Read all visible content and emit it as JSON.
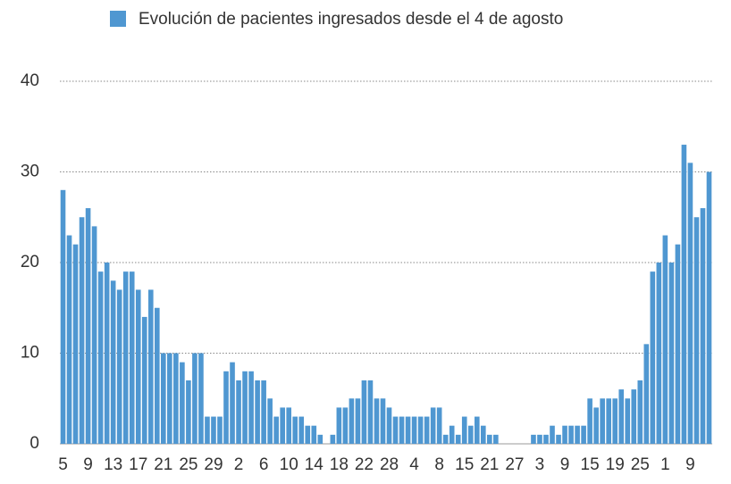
{
  "chart_data": {
    "type": "bar",
    "legend": "Evolución de pacientes ingresados desde el 4 de agosto",
    "color": "#4f97d1",
    "categories": [
      "5",
      null,
      null,
      null,
      "9",
      null,
      null,
      null,
      "13",
      null,
      null,
      null,
      "17",
      null,
      null,
      null,
      "21",
      null,
      null,
      null,
      "25",
      null,
      null,
      null,
      "29",
      null,
      null,
      null,
      "2",
      null,
      null,
      null,
      "6",
      null,
      null,
      null,
      "10",
      null,
      null,
      null,
      "14",
      null,
      null,
      null,
      "18",
      null,
      null,
      null,
      "22",
      null,
      null,
      null,
      "28",
      null,
      null,
      null,
      "4",
      null,
      null,
      null,
      "8",
      null,
      null,
      null,
      "15",
      null,
      null,
      null,
      "21",
      null,
      null,
      null,
      "27",
      null,
      null,
      null,
      "3",
      null,
      null,
      null,
      "9",
      null,
      null,
      null,
      "15",
      null,
      null,
      null,
      "19",
      null,
      null,
      null,
      "25",
      null,
      null,
      null,
      "1",
      null,
      null,
      null,
      "9",
      null,
      null,
      null
    ],
    "values": [
      28,
      23,
      22,
      25,
      26,
      24,
      19,
      20,
      18,
      17,
      19,
      19,
      17,
      14,
      17,
      15,
      10,
      10,
      10,
      9,
      7,
      10,
      10,
      3,
      3,
      3,
      8,
      9,
      7,
      8,
      8,
      7,
      7,
      5,
      3,
      4,
      4,
      3,
      3,
      2,
      2,
      1,
      0,
      1,
      4,
      4,
      5,
      5,
      7,
      7,
      5,
      5,
      4,
      3,
      3,
      3,
      3,
      3,
      3,
      4,
      4,
      1,
      2,
      1,
      3,
      2,
      3,
      2,
      1,
      1,
      0,
      0,
      0,
      0,
      0,
      1,
      1,
      1,
      2,
      1,
      2,
      2,
      2,
      2,
      5,
      4,
      5,
      5,
      5,
      6,
      5,
      6,
      7,
      11,
      19,
      20,
      23,
      20,
      22,
      33,
      31,
      25,
      26,
      30
    ],
    "ylim": [
      0,
      40
    ],
    "yticks": [
      0,
      10,
      20,
      30,
      40
    ],
    "grid": true
  }
}
